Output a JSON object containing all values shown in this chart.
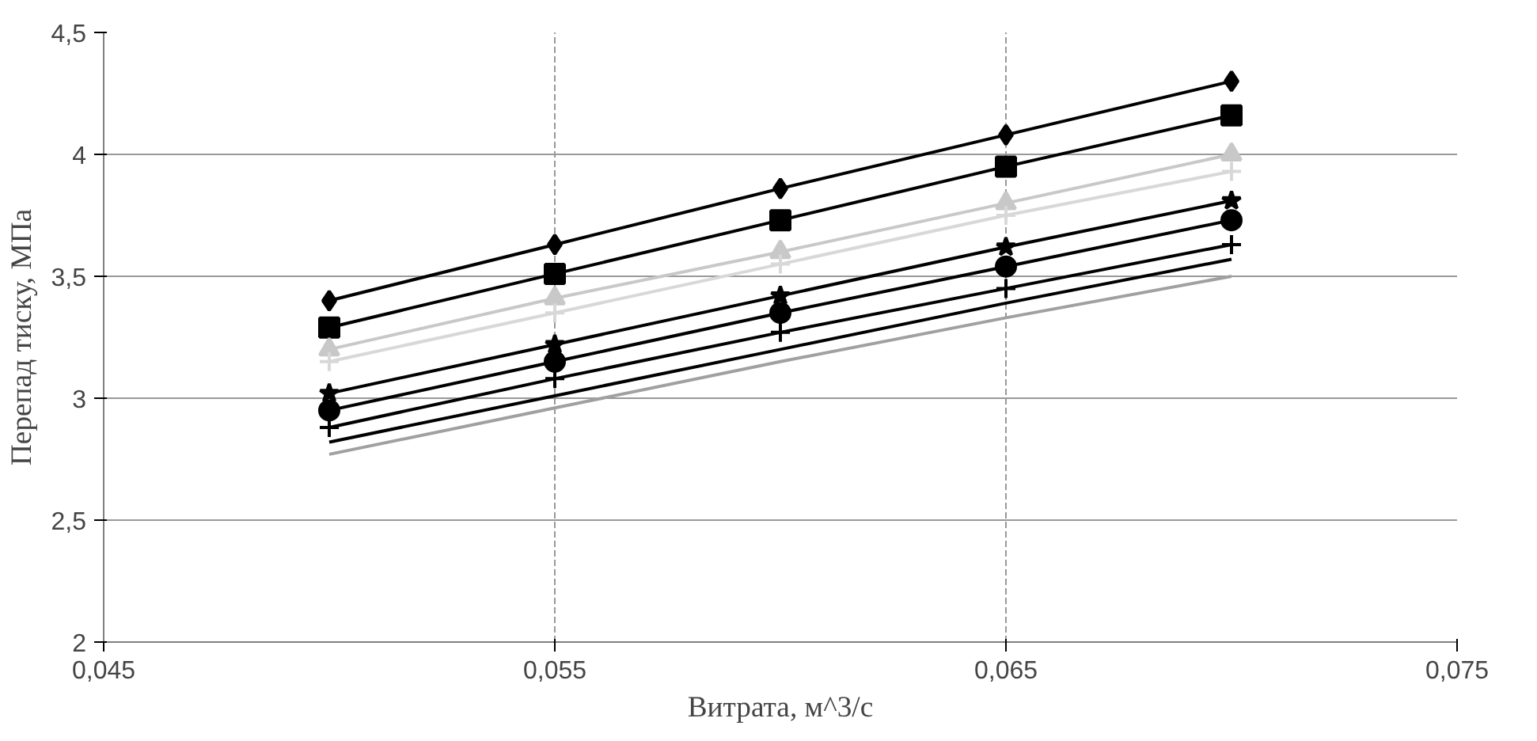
{
  "chart_data": {
    "type": "line",
    "xlabel": "Витрата, м^3/с",
    "ylabel": "Перепад тиску, МПа",
    "x": [
      0.05,
      0.055,
      0.06,
      0.065,
      0.07
    ],
    "xlim": [
      0.045,
      0.075
    ],
    "xticks": [
      {
        "value": 0.045,
        "label": "0,045"
      },
      {
        "value": 0.055,
        "label": "0,055"
      },
      {
        "value": 0.065,
        "label": "0,065"
      },
      {
        "value": 0.075,
        "label": "0,075"
      }
    ],
    "ylim": [
      2,
      4.5
    ],
    "yticks": [
      2,
      {
        "value": 2.5,
        "label": "2,5"
      },
      3,
      {
        "value": 3.5,
        "label": "3,5"
      },
      4,
      {
        "value": 4.5,
        "label": "4,5"
      }
    ],
    "grid": true,
    "line_style": "solid",
    "series": [
      {
        "color": "#000000",
        "marker": "diamond",
        "values": [
          3.4,
          3.63,
          3.86,
          4.08,
          4.3
        ]
      },
      {
        "color": "#000000",
        "marker": "square",
        "values": [
          3.29,
          3.51,
          3.73,
          3.95,
          4.16
        ]
      },
      {
        "color": "#c8c8c8",
        "marker": "triangle",
        "values": [
          3.2,
          3.41,
          3.6,
          3.8,
          4.0
        ]
      },
      {
        "color": "#d8d8d8",
        "marker": "cross",
        "values": [
          3.15,
          3.35,
          3.55,
          3.75,
          3.93
        ]
      },
      {
        "color": "#000000",
        "marker": "star",
        "values": [
          3.02,
          3.22,
          3.42,
          3.62,
          3.81
        ]
      },
      {
        "color": "#000000",
        "marker": "circle",
        "values": [
          2.95,
          3.15,
          3.35,
          3.54,
          3.73
        ]
      },
      {
        "color": "#000000",
        "marker": "cross",
        "values": [
          2.88,
          3.08,
          3.27,
          3.45,
          3.63
        ]
      },
      {
        "color": "#000000",
        "marker": "none",
        "values": [
          2.82,
          3.01,
          3.2,
          3.39,
          3.57
        ]
      },
      {
        "color": "#a0a0a0",
        "marker": "none",
        "values": [
          2.77,
          2.96,
          3.15,
          3.33,
          3.5
        ]
      }
    ]
  }
}
